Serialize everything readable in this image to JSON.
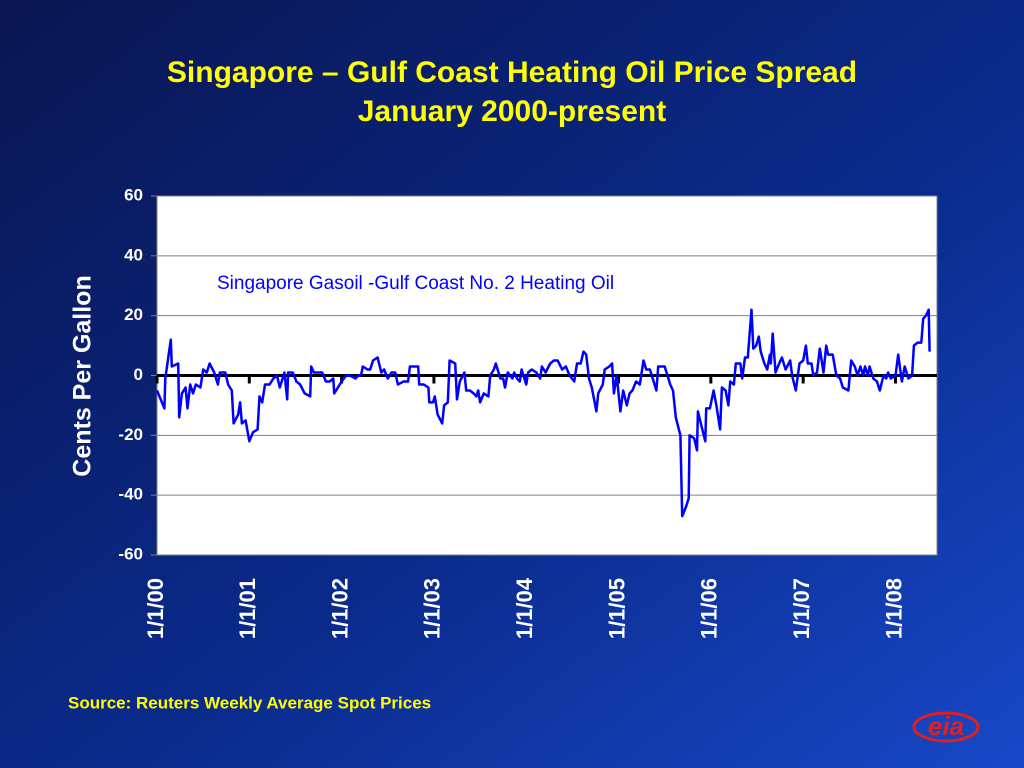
{
  "chart_data": {
    "type": "line",
    "title": [
      "Singapore – Gulf Coast Heating Oil Price Spread",
      "January 2000-present"
    ],
    "y_label": "Cents Per Gallon",
    "source": "Source: Reuters Weekly Average Spot Prices",
    "logo": "eia",
    "xlim": [
      2000,
      2008.45
    ],
    "xticks": [
      {
        "value": 2000,
        "label": "1/1/00"
      },
      {
        "value": 2001,
        "label": "1/1/01"
      },
      {
        "value": 2002,
        "label": "1/1/02"
      },
      {
        "value": 2003,
        "label": "1/1/03"
      },
      {
        "value": 2004,
        "label": "1/1/04"
      },
      {
        "value": 2005,
        "label": "1/1/05"
      },
      {
        "value": 2006,
        "label": "1/1/06"
      },
      {
        "value": 2007,
        "label": "1/1/07"
      },
      {
        "value": 2008,
        "label": "1/1/08"
      }
    ],
    "ylim": [
      -60,
      60
    ],
    "yticks": [
      -60,
      -40,
      -20,
      0,
      20,
      40,
      60
    ],
    "grid": true,
    "x": [
      2000.0,
      2000.08,
      2000.09,
      2000.15,
      2000.16,
      2000.23,
      2000.24,
      2000.27,
      2000.31,
      2000.33,
      2000.36,
      2000.39,
      2000.42,
      2000.47,
      2000.5,
      2000.54,
      2000.57,
      2000.62,
      2000.66,
      2000.68,
      2000.74,
      2000.77,
      2000.81,
      2000.83,
      2000.88,
      2000.9,
      2000.92,
      2000.96,
      2001.0,
      2001.04,
      2001.09,
      2001.11,
      2001.14,
      2001.17,
      2001.22,
      2001.26,
      2001.3,
      2001.33,
      2001.38,
      2001.41,
      2001.42,
      2001.47,
      2001.51,
      2001.55,
      2001.6,
      2001.66,
      2001.67,
      2001.7,
      2001.74,
      2001.79,
      2001.83,
      2001.87,
      2001.91,
      2001.92,
      2001.96,
      2002.0,
      2002.05,
      2002.09,
      2002.15,
      2002.18,
      2002.21,
      2002.23,
      2002.28,
      2002.31,
      2002.34,
      2002.39,
      2002.43,
      2002.46,
      2002.5,
      2002.54,
      2002.58,
      2002.61,
      2002.67,
      2002.72,
      2002.74,
      2002.83,
      2002.84,
      2002.89,
      2002.94,
      2002.95,
      2002.99,
      2003.01,
      2003.04,
      2003.09,
      2003.11,
      2003.15,
      2003.17,
      2003.23,
      2003.25,
      2003.28,
      2003.33,
      2003.35,
      2003.39,
      2003.43,
      2003.46,
      2003.48,
      2003.5,
      2003.54,
      2003.59,
      2003.61,
      2003.65,
      2003.67,
      2003.72,
      2003.75,
      2003.77,
      2003.8,
      2003.85,
      2003.87,
      2003.9,
      2003.93,
      2003.95,
      2004.0,
      2004.02,
      2004.06,
      2004.11,
      2004.15,
      2004.17,
      2004.21,
      2004.26,
      2004.3,
      2004.34,
      2004.39,
      2004.43,
      2004.47,
      2004.52,
      2004.55,
      2004.59,
      2004.62,
      2004.65,
      2004.68,
      2004.71,
      2004.76,
      2004.78,
      2004.83,
      2004.85,
      2004.9,
      2004.93,
      2004.95,
      2004.98,
      2005.02,
      2005.05,
      2005.09,
      2005.12,
      2005.15,
      2005.19,
      2005.23,
      2005.27,
      2005.3,
      2005.34,
      2005.37,
      2005.41,
      2005.43,
      2005.47,
      2005.5,
      2005.54,
      2005.56,
      2005.59,
      2005.62,
      2005.67,
      2005.69,
      2005.73,
      2005.76,
      2005.77,
      2005.82,
      2005.85,
      2005.86,
      2005.9,
      2005.94,
      2005.95,
      2005.99,
      2006.03,
      2006.06,
      2006.1,
      2006.12,
      2006.16,
      2006.19,
      2006.21,
      2006.25,
      2006.27,
      2006.32,
      2006.34,
      2006.37,
      2006.4,
      2006.44,
      2006.46,
      2006.49,
      2006.52,
      2006.54,
      2006.58,
      2006.61,
      2006.64,
      2006.65,
      2006.67,
      2006.7,
      2006.74,
      2006.77,
      2006.81,
      2006.86,
      2006.88,
      2006.92,
      2006.96,
      2007.0,
      2007.03,
      2007.05,
      2007.09,
      2007.11,
      2007.15,
      2007.18,
      2007.22,
      2007.25,
      2007.27,
      2007.32,
      2007.36,
      2007.4,
      2007.43,
      2007.49,
      2007.52,
      2007.56,
      2007.59,
      2007.62,
      2007.65,
      2007.67,
      2007.7,
      2007.72,
      2007.76,
      2007.8,
      2007.83,
      2007.87,
      2007.9,
      2007.92,
      2007.95,
      2008.0,
      2008.03,
      2008.07,
      2008.1,
      2008.14,
      2008.18,
      2008.2,
      2008.24,
      2008.28,
      2008.3,
      2008.33,
      2008.36,
      2008.37
    ],
    "series": [
      {
        "name": "Singapore Gasoil -Gulf Coast No. 2 Heating Oil",
        "color": "#0000ff",
        "values": [
          -5,
          -11,
          -1,
          12,
          3,
          4,
          -14,
          -6,
          -4,
          -11,
          -3,
          -6,
          -3,
          -4,
          2,
          1,
          4,
          1,
          -3,
          1,
          1,
          -3,
          -5,
          -16,
          -13,
          -9,
          -16,
          -15,
          -22,
          -19,
          -18,
          -7,
          -9,
          -3,
          -3,
          -1,
          0,
          -4,
          1,
          -8,
          1,
          1,
          -2,
          -3,
          -6,
          -7,
          3,
          1,
          1,
          1,
          -2,
          -2,
          -1,
          -6,
          -4,
          -2,
          0,
          0,
          -1,
          0,
          0,
          3,
          2,
          2,
          5,
          6,
          1,
          2,
          -1,
          1,
          1,
          -3,
          -2,
          -2,
          3,
          3,
          -3,
          -3,
          -4,
          -9,
          -9,
          -7,
          -13,
          -16,
          -10,
          -9,
          5,
          4,
          -8,
          -2,
          1,
          -5,
          -5,
          -6,
          -7,
          -5,
          -9,
          -6,
          -7,
          0,
          2,
          4,
          -1,
          -1,
          -4,
          1,
          -1,
          1,
          -1,
          -2,
          2,
          -3,
          1,
          2,
          1,
          -1,
          3,
          1,
          4,
          5,
          5,
          2,
          3,
          0,
          -2,
          4,
          4,
          8,
          7,
          -1,
          -4,
          -12,
          -6,
          -3,
          2,
          3,
          4,
          -6,
          0,
          -12,
          -5,
          -10,
          -6,
          -5,
          -2,
          -3,
          5,
          2,
          2,
          -1,
          -5,
          3,
          3,
          3,
          -1,
          -3,
          -5,
          -14,
          -20,
          -47,
          -44,
          -41,
          -20,
          -21,
          -25,
          -12,
          -17,
          -22,
          -11,
          -11,
          -5,
          -10,
          -18,
          -4,
          -5,
          -10,
          -2,
          -3,
          4,
          4,
          -1,
          6,
          6,
          22,
          9,
          10,
          13,
          8,
          4,
          2,
          7,
          4,
          14,
          1,
          4,
          6,
          2,
          5,
          0,
          -5,
          4,
          5,
          10,
          4,
          4,
          0,
          1,
          9,
          1,
          10,
          7,
          7,
          0,
          -1,
          -4,
          -5,
          5,
          3,
          0,
          3,
          0,
          3,
          0,
          3,
          -1,
          -2,
          -5,
          0,
          -1,
          1,
          -1,
          0,
          7,
          -2,
          3,
          -1,
          0,
          10,
          11,
          11,
          19,
          20,
          22,
          8
        ]
      }
    ]
  }
}
